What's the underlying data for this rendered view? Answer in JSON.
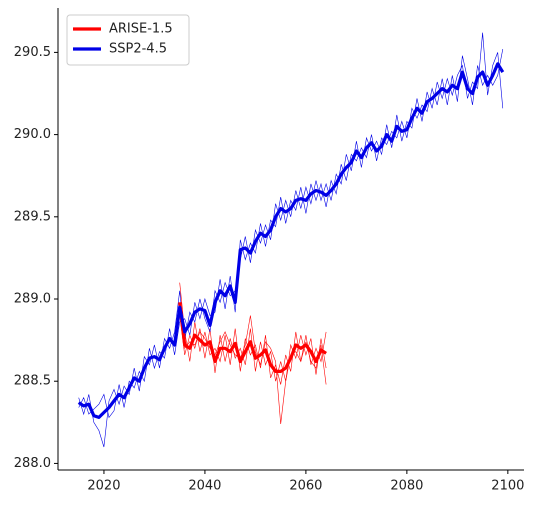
{
  "chart_data": {
    "type": "line",
    "xlim": [
      2010.9,
      2103.2
    ],
    "xticks": [
      2020,
      2040,
      2060,
      2080,
      2100
    ],
    "ylim": [
      287.96,
      290.77
    ],
    "yticks": [
      {
        "value": 288.0,
        "label": "288.0"
      },
      {
        "value": 288.5,
        "label": "288.5"
      },
      {
        "value": 289.0,
        "label": "289.0"
      },
      {
        "value": 289.5,
        "label": "289.5"
      },
      {
        "value": 290.0,
        "label": "290.0"
      },
      {
        "value": 290.5,
        "label": "290.5"
      }
    ],
    "legend": "upper left",
    "series": [
      {
        "name": "ARISE-1.5",
        "color": "#ff0000",
        "x": [
          2035,
          2036,
          2037,
          2038,
          2039,
          2040,
          2041,
          2042,
          2043,
          2044,
          2045,
          2046,
          2047,
          2048,
          2049,
          2050,
          2051,
          2052,
          2053,
          2054,
          2055,
          2056,
          2057,
          2058,
          2059,
          2060,
          2061,
          2062,
          2063,
          2064
        ],
        "values": [
          288.98,
          288.72,
          288.7,
          288.78,
          288.75,
          288.72,
          288.74,
          288.62,
          288.7,
          288.7,
          288.68,
          288.73,
          288.62,
          288.68,
          288.74,
          288.64,
          288.66,
          288.69,
          288.6,
          288.56,
          288.56,
          288.58,
          288.64,
          288.72,
          288.7,
          288.72,
          288.68,
          288.62,
          288.69,
          288.67
        ],
        "members": [
          [
            289.1,
            288.8,
            288.62,
            288.86,
            288.68,
            288.8,
            288.66,
            288.7,
            288.62,
            288.78,
            288.6,
            288.82,
            288.56,
            288.76,
            288.66,
            288.72,
            288.58,
            288.78,
            288.52,
            288.6,
            288.48,
            288.66,
            288.56,
            288.8,
            288.62,
            288.78,
            288.6,
            288.7,
            288.62,
            288.8
          ],
          [
            288.9,
            288.66,
            288.78,
            288.7,
            288.82,
            288.64,
            288.82,
            288.55,
            288.78,
            288.62,
            288.76,
            288.64,
            288.7,
            288.6,
            288.82,
            288.56,
            288.74,
            288.6,
            288.68,
            288.5,
            288.62,
            288.5,
            288.72,
            288.64,
            288.78,
            288.66,
            288.76,
            288.54,
            288.76,
            288.58
          ],
          [
            288.95,
            288.7,
            288.74,
            288.72,
            288.8,
            288.76,
            288.7,
            288.66,
            288.74,
            288.8,
            288.72,
            288.66,
            288.64,
            288.72,
            288.9,
            288.68,
            288.6,
            288.74,
            288.7,
            288.62,
            288.24,
            288.5,
            288.66,
            288.68,
            288.62,
            288.74,
            288.62,
            288.58,
            288.72,
            288.48
          ]
        ]
      },
      {
        "name": "SSP2-4.5",
        "color": "#0000e6",
        "x": [
          2015,
          2016,
          2017,
          2018,
          2019,
          2020,
          2021,
          2022,
          2023,
          2024,
          2025,
          2026,
          2027,
          2028,
          2029,
          2030,
          2031,
          2032,
          2033,
          2034,
          2035,
          2036,
          2037,
          2038,
          2039,
          2040,
          2041,
          2042,
          2043,
          2044,
          2045,
          2046,
          2047,
          2048,
          2049,
          2050,
          2051,
          2052,
          2053,
          2054,
          2055,
          2056,
          2057,
          2058,
          2059,
          2060,
          2061,
          2062,
          2063,
          2064,
          2065,
          2066,
          2067,
          2068,
          2069,
          2070,
          2071,
          2072,
          2073,
          2074,
          2075,
          2076,
          2077,
          2078,
          2079,
          2080,
          2081,
          2082,
          2083,
          2084,
          2085,
          2086,
          2087,
          2088,
          2089,
          2090,
          2091,
          2092,
          2093,
          2094,
          2095,
          2096,
          2097,
          2098,
          2099
        ],
        "values": [
          288.37,
          288.35,
          288.36,
          288.29,
          288.28,
          288.31,
          288.34,
          288.38,
          288.42,
          288.4,
          288.46,
          288.52,
          288.5,
          288.58,
          288.64,
          288.65,
          288.63,
          288.7,
          288.76,
          288.72,
          288.95,
          288.8,
          288.85,
          288.92,
          288.94,
          288.93,
          288.84,
          288.98,
          289.05,
          289.02,
          289.08,
          288.98,
          289.3,
          289.31,
          289.28,
          289.35,
          289.4,
          289.38,
          289.42,
          289.5,
          289.55,
          289.53,
          289.55,
          289.6,
          289.61,
          289.6,
          289.64,
          289.66,
          289.65,
          289.63,
          289.66,
          289.7,
          289.76,
          289.8,
          289.83,
          289.9,
          289.86,
          289.92,
          289.95,
          289.9,
          289.93,
          290.0,
          289.96,
          290.05,
          290.02,
          290.03,
          290.1,
          290.16,
          290.13,
          290.2,
          290.22,
          290.25,
          290.28,
          290.26,
          290.3,
          290.28,
          290.38,
          290.28,
          290.25,
          290.35,
          290.38,
          290.3,
          290.36,
          290.43,
          290.38
        ],
        "members": [
          [
            288.4,
            288.3,
            288.42,
            288.25,
            288.2,
            288.1,
            288.38,
            288.45,
            288.36,
            288.47,
            288.42,
            288.58,
            288.44,
            288.65,
            288.6,
            288.72,
            288.58,
            288.76,
            288.7,
            288.8,
            289.05,
            288.75,
            288.92,
            288.86,
            289.0,
            288.88,
            288.8,
            289.05,
            288.98,
            289.1,
            289.02,
            289.05,
            289.24,
            289.38,
            289.22,
            289.42,
            289.34,
            289.45,
            289.36,
            289.58,
            289.48,
            289.6,
            289.5,
            289.66,
            289.55,
            289.68,
            289.58,
            289.72,
            289.6,
            289.7,
            289.6,
            289.76,
            289.7,
            289.88,
            289.78,
            289.96,
            289.8,
            289.98,
            289.9,
            289.96,
            289.88,
            290.06,
            289.92,
            290.12,
            289.96,
            290.08,
            290.04,
            290.22,
            290.08,
            290.26,
            290.16,
            290.32,
            290.22,
            290.34,
            290.24,
            290.36,
            290.42,
            290.22,
            290.32,
            290.28,
            290.62,
            290.24,
            290.42,
            290.5,
            290.16
          ],
          [
            288.34,
            288.4,
            288.3,
            288.33,
            288.36,
            288.42,
            288.28,
            288.32,
            288.48,
            288.34,
            288.5,
            288.46,
            288.56,
            288.5,
            288.7,
            288.58,
            288.68,
            288.64,
            288.82,
            288.66,
            288.86,
            288.88,
            288.78,
            288.98,
            288.88,
            289.0,
            288.9,
            288.92,
            289.12,
            288.94,
            289.14,
            288.92,
            289.36,
            289.24,
            289.34,
            289.28,
            289.46,
            289.32,
            289.48,
            289.44,
            289.62,
            289.46,
            289.6,
            289.54,
            289.68,
            289.52,
            289.7,
            289.6,
            289.7,
            289.56,
            289.72,
            289.64,
            289.82,
            289.72,
            289.88,
            289.84,
            289.92,
            289.86,
            290.0,
            289.84,
            289.98,
            289.94,
            290.02,
            289.98,
            290.08,
            289.98,
            290.16,
            290.1,
            290.18,
            290.14,
            290.28,
            290.18,
            290.34,
            290.18,
            290.36,
            290.2,
            290.48,
            290.34,
            290.18,
            290.42,
            290.3,
            290.36,
            290.3,
            290.36,
            290.52
          ]
        ]
      }
    ]
  }
}
